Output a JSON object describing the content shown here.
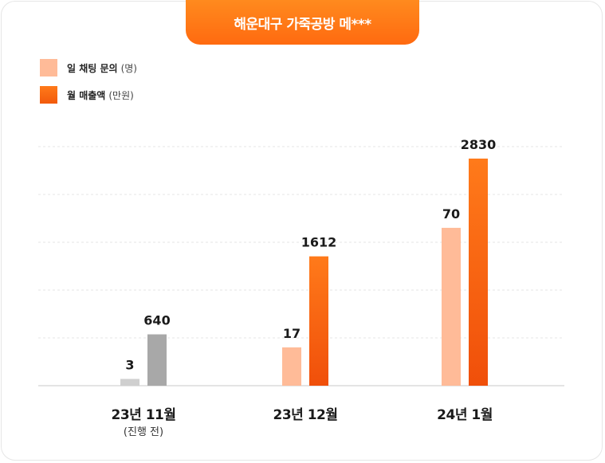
{
  "title": "해운대구 가죽공방 메***",
  "legend": [
    {
      "label": "일 채팅 문의",
      "unit": "(명)",
      "color": "#ffbb98"
    },
    {
      "label": "월 매출액",
      "unit": "(만원)",
      "color": "#f86a14"
    }
  ],
  "chart_data": {
    "type": "bar",
    "title": "해운대구 가죽공방 메***",
    "categories": [
      "23년 11월",
      "23년 12월",
      "24년 1월"
    ],
    "category_notes": [
      "(진행 전)",
      "",
      ""
    ],
    "series": [
      {
        "name": "일 채팅 문의 (명)",
        "values": [
          3,
          17,
          70
        ],
        "color": "#ffbb98",
        "before_color": "#cfcfcf"
      },
      {
        "name": "월 매출액 (만원)",
        "values": [
          640,
          1612,
          2830
        ],
        "color": "#f86a14",
        "before_color": "#a8a8a8"
      }
    ],
    "grid": true,
    "legend_position": "top-left",
    "note": "23년 11월 bars are shown in gray (진행 전)"
  }
}
